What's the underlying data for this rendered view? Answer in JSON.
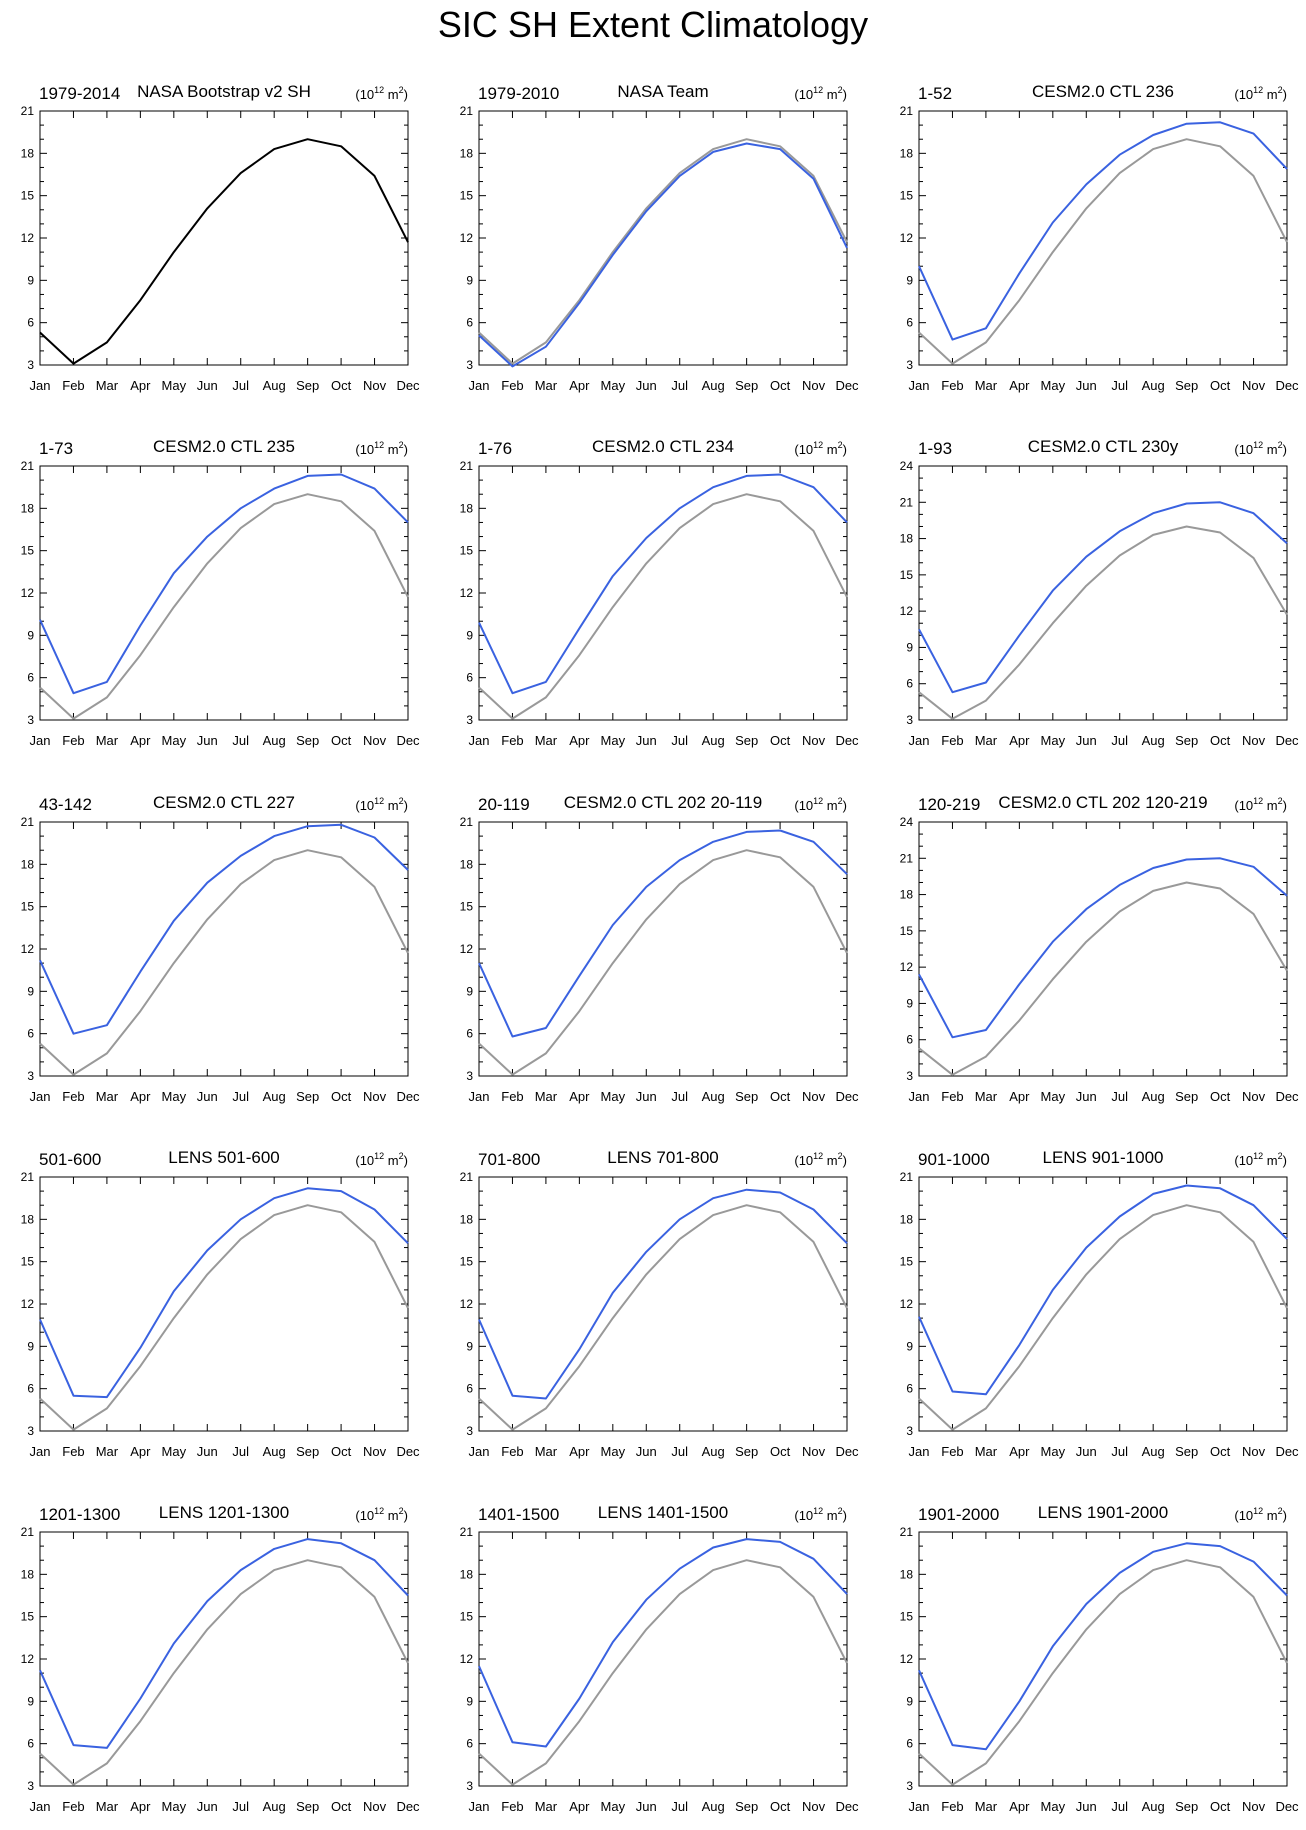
{
  "title": "SIC SH Extent Climatology",
  "units_base": "(10",
  "units_exp": "12",
  "units_unit": " m",
  "units_exp2": "2",
  "units_close": ")",
  "colors": {
    "observed": "#000000",
    "reference": "#999999",
    "model": "#3a62e0"
  },
  "chart_data": [
    {
      "type": "line",
      "left_label": "1979-2014",
      "center_label": "NASA Bootstrap v2 SH",
      "categories": [
        "Jan",
        "Feb",
        "Mar",
        "Apr",
        "May",
        "Jun",
        "Jul",
        "Aug",
        "Sep",
        "Oct",
        "Nov",
        "Dec"
      ],
      "ylim": [
        3,
        21
      ],
      "yticks": [
        3,
        6,
        9,
        12,
        15,
        18,
        21
      ],
      "series": [
        {
          "role": "observed",
          "values": [
            5.3,
            3.1,
            4.6,
            7.6,
            11.0,
            14.1,
            16.6,
            18.3,
            19.0,
            18.5,
            16.4,
            11.7
          ]
        }
      ]
    },
    {
      "type": "line",
      "left_label": "1979-2010",
      "center_label": "NASA Team",
      "categories": [
        "Jan",
        "Feb",
        "Mar",
        "Apr",
        "May",
        "Jun",
        "Jul",
        "Aug",
        "Sep",
        "Oct",
        "Nov",
        "Dec"
      ],
      "ylim": [
        3,
        21
      ],
      "yticks": [
        3,
        6,
        9,
        12,
        15,
        18,
        21
      ],
      "series": [
        {
          "role": "reference",
          "values": [
            5.3,
            3.1,
            4.6,
            7.6,
            11.0,
            14.1,
            16.6,
            18.3,
            19.0,
            18.5,
            16.4,
            11.7
          ]
        },
        {
          "role": "model",
          "values": [
            5.1,
            2.9,
            4.3,
            7.4,
            10.8,
            13.9,
            16.4,
            18.1,
            18.7,
            18.3,
            16.2,
            11.3
          ]
        }
      ]
    },
    {
      "type": "line",
      "left_label": "1-52",
      "center_label": "CESM2.0 CTL 236",
      "categories": [
        "Jan",
        "Feb",
        "Mar",
        "Apr",
        "May",
        "Jun",
        "Jul",
        "Aug",
        "Sep",
        "Oct",
        "Nov",
        "Dec"
      ],
      "ylim": [
        3,
        21
      ],
      "yticks": [
        3,
        6,
        9,
        12,
        15,
        18,
        21
      ],
      "series": [
        {
          "role": "reference",
          "values": [
            5.3,
            3.1,
            4.6,
            7.6,
            11.0,
            14.1,
            16.6,
            18.3,
            19.0,
            18.5,
            16.4,
            11.7
          ]
        },
        {
          "role": "model",
          "values": [
            10.0,
            4.8,
            5.6,
            9.5,
            13.1,
            15.8,
            17.9,
            19.3,
            20.1,
            20.2,
            19.4,
            16.9
          ]
        }
      ]
    },
    {
      "type": "line",
      "left_label": "1-73",
      "center_label": "CESM2.0 CTL 235",
      "categories": [
        "Jan",
        "Feb",
        "Mar",
        "Apr",
        "May",
        "Jun",
        "Jul",
        "Aug",
        "Sep",
        "Oct",
        "Nov",
        "Dec"
      ],
      "ylim": [
        3,
        21
      ],
      "yticks": [
        3,
        6,
        9,
        12,
        15,
        18,
        21
      ],
      "series": [
        {
          "role": "reference",
          "values": [
            5.3,
            3.1,
            4.6,
            7.6,
            11.0,
            14.1,
            16.6,
            18.3,
            19.0,
            18.5,
            16.4,
            11.7
          ]
        },
        {
          "role": "model",
          "values": [
            10.1,
            4.9,
            5.7,
            9.7,
            13.4,
            16.0,
            18.0,
            19.4,
            20.3,
            20.4,
            19.4,
            17.0
          ]
        }
      ]
    },
    {
      "type": "line",
      "left_label": "1-76",
      "center_label": "CESM2.0 CTL 234",
      "categories": [
        "Jan",
        "Feb",
        "Mar",
        "Apr",
        "May",
        "Jun",
        "Jul",
        "Aug",
        "Sep",
        "Oct",
        "Nov",
        "Dec"
      ],
      "ylim": [
        3,
        21
      ],
      "yticks": [
        3,
        6,
        9,
        12,
        15,
        18,
        21
      ],
      "series": [
        {
          "role": "reference",
          "values": [
            5.3,
            3.1,
            4.6,
            7.6,
            11.0,
            14.1,
            16.6,
            18.3,
            19.0,
            18.5,
            16.4,
            11.7
          ]
        },
        {
          "role": "model",
          "values": [
            9.9,
            4.9,
            5.7,
            9.5,
            13.2,
            15.9,
            18.0,
            19.5,
            20.3,
            20.4,
            19.5,
            17.0
          ]
        }
      ]
    },
    {
      "type": "line",
      "left_label": "1-93",
      "center_label": "CESM2.0 CTL 230y",
      "categories": [
        "Jan",
        "Feb",
        "Mar",
        "Apr",
        "May",
        "Jun",
        "Jul",
        "Aug",
        "Sep",
        "Oct",
        "Nov",
        "Dec"
      ],
      "ylim": [
        3,
        24
      ],
      "yticks": [
        3,
        6,
        9,
        12,
        15,
        18,
        21,
        24
      ],
      "series": [
        {
          "role": "reference",
          "values": [
            5.3,
            3.1,
            4.6,
            7.6,
            11.0,
            14.1,
            16.6,
            18.3,
            19.0,
            18.5,
            16.4,
            11.7
          ]
        },
        {
          "role": "model",
          "values": [
            10.5,
            5.3,
            6.1,
            10.0,
            13.7,
            16.5,
            18.6,
            20.1,
            20.9,
            21.0,
            20.1,
            17.6
          ]
        }
      ]
    },
    {
      "type": "line",
      "left_label": "43-142",
      "center_label": "CESM2.0 CTL 227",
      "categories": [
        "Jan",
        "Feb",
        "Mar",
        "Apr",
        "May",
        "Jun",
        "Jul",
        "Aug",
        "Sep",
        "Oct",
        "Nov",
        "Dec"
      ],
      "ylim": [
        3,
        21
      ],
      "yticks": [
        3,
        6,
        9,
        12,
        15,
        18,
        21
      ],
      "series": [
        {
          "role": "reference",
          "values": [
            5.3,
            3.1,
            4.6,
            7.6,
            11.0,
            14.1,
            16.6,
            18.3,
            19.0,
            18.5,
            16.4,
            11.7
          ]
        },
        {
          "role": "model",
          "values": [
            11.2,
            6.0,
            6.6,
            10.4,
            14.0,
            16.7,
            18.6,
            20.0,
            20.7,
            20.8,
            19.9,
            17.6
          ]
        }
      ]
    },
    {
      "type": "line",
      "left_label": "20-119",
      "center_label": "CESM2.0 CTL 202 20-119",
      "categories": [
        "Jan",
        "Feb",
        "Mar",
        "Apr",
        "May",
        "Jun",
        "Jul",
        "Aug",
        "Sep",
        "Oct",
        "Nov",
        "Dec"
      ],
      "ylim": [
        3,
        21
      ],
      "yticks": [
        3,
        6,
        9,
        12,
        15,
        18,
        21
      ],
      "series": [
        {
          "role": "reference",
          "values": [
            5.3,
            3.1,
            4.6,
            7.6,
            11.0,
            14.1,
            16.6,
            18.3,
            19.0,
            18.5,
            16.4,
            11.7
          ]
        },
        {
          "role": "model",
          "values": [
            11.0,
            5.8,
            6.4,
            10.1,
            13.7,
            16.4,
            18.3,
            19.6,
            20.3,
            20.4,
            19.6,
            17.3
          ]
        }
      ]
    },
    {
      "type": "line",
      "left_label": "120-219",
      "center_label": "CESM2.0 CTL 202 120-219",
      "categories": [
        "Jan",
        "Feb",
        "Mar",
        "Apr",
        "May",
        "Jun",
        "Jul",
        "Aug",
        "Sep",
        "Oct",
        "Nov",
        "Dec"
      ],
      "ylim": [
        3,
        24
      ],
      "yticks": [
        3,
        6,
        9,
        12,
        15,
        18,
        21,
        24
      ],
      "series": [
        {
          "role": "reference",
          "values": [
            5.3,
            3.1,
            4.6,
            7.6,
            11.0,
            14.1,
            16.6,
            18.3,
            19.0,
            18.5,
            16.4,
            11.7
          ]
        },
        {
          "role": "model",
          "values": [
            11.4,
            6.2,
            6.8,
            10.6,
            14.1,
            16.8,
            18.8,
            20.2,
            20.9,
            21.0,
            20.3,
            17.9
          ]
        }
      ]
    },
    {
      "type": "line",
      "left_label": "501-600",
      "center_label": "LENS 501-600",
      "categories": [
        "Jan",
        "Feb",
        "Mar",
        "Apr",
        "May",
        "Jun",
        "Jul",
        "Aug",
        "Sep",
        "Oct",
        "Nov",
        "Dec"
      ],
      "ylim": [
        3,
        21
      ],
      "yticks": [
        3,
        6,
        9,
        12,
        15,
        18,
        21
      ],
      "series": [
        {
          "role": "reference",
          "values": [
            5.3,
            3.1,
            4.6,
            7.6,
            11.0,
            14.1,
            16.6,
            18.3,
            19.0,
            18.5,
            16.4,
            11.7
          ]
        },
        {
          "role": "model",
          "values": [
            10.9,
            5.5,
            5.4,
            8.9,
            12.9,
            15.8,
            18.0,
            19.5,
            20.2,
            20.0,
            18.7,
            16.3
          ]
        }
      ]
    },
    {
      "type": "line",
      "left_label": "701-800",
      "center_label": "LENS 701-800",
      "categories": [
        "Jan",
        "Feb",
        "Mar",
        "Apr",
        "May",
        "Jun",
        "Jul",
        "Aug",
        "Sep",
        "Oct",
        "Nov",
        "Dec"
      ],
      "ylim": [
        3,
        21
      ],
      "yticks": [
        3,
        6,
        9,
        12,
        15,
        18,
        21
      ],
      "series": [
        {
          "role": "reference",
          "values": [
            5.3,
            3.1,
            4.6,
            7.6,
            11.0,
            14.1,
            16.6,
            18.3,
            19.0,
            18.5,
            16.4,
            11.7
          ]
        },
        {
          "role": "model",
          "values": [
            10.9,
            5.5,
            5.3,
            8.8,
            12.8,
            15.7,
            18.0,
            19.5,
            20.1,
            19.9,
            18.7,
            16.3
          ]
        }
      ]
    },
    {
      "type": "line",
      "left_label": "901-1000",
      "center_label": "LENS 901-1000",
      "categories": [
        "Jan",
        "Feb",
        "Mar",
        "Apr",
        "May",
        "Jun",
        "Jul",
        "Aug",
        "Sep",
        "Oct",
        "Nov",
        "Dec"
      ],
      "ylim": [
        3,
        21
      ],
      "yticks": [
        3,
        6,
        9,
        12,
        15,
        18,
        21
      ],
      "series": [
        {
          "role": "reference",
          "values": [
            5.3,
            3.1,
            4.6,
            7.6,
            11.0,
            14.1,
            16.6,
            18.3,
            19.0,
            18.5,
            16.4,
            11.7
          ]
        },
        {
          "role": "model",
          "values": [
            11.1,
            5.8,
            5.6,
            9.1,
            13.0,
            16.0,
            18.2,
            19.8,
            20.4,
            20.2,
            19.0,
            16.6
          ]
        }
      ]
    },
    {
      "type": "line",
      "left_label": "1201-1300",
      "center_label": "LENS 1201-1300",
      "categories": [
        "Jan",
        "Feb",
        "Mar",
        "Apr",
        "May",
        "Jun",
        "Jul",
        "Aug",
        "Sep",
        "Oct",
        "Nov",
        "Dec"
      ],
      "ylim": [
        3,
        21
      ],
      "yticks": [
        3,
        6,
        9,
        12,
        15,
        18,
        21
      ],
      "series": [
        {
          "role": "reference",
          "values": [
            5.3,
            3.1,
            4.6,
            7.6,
            11.0,
            14.1,
            16.6,
            18.3,
            19.0,
            18.5,
            16.4,
            11.7
          ]
        },
        {
          "role": "model",
          "values": [
            11.2,
            5.9,
            5.7,
            9.2,
            13.1,
            16.1,
            18.3,
            19.8,
            20.5,
            20.2,
            19.0,
            16.5
          ]
        }
      ]
    },
    {
      "type": "line",
      "left_label": "1401-1500",
      "center_label": "LENS 1401-1500",
      "categories": [
        "Jan",
        "Feb",
        "Mar",
        "Apr",
        "May",
        "Jun",
        "Jul",
        "Aug",
        "Sep",
        "Oct",
        "Nov",
        "Dec"
      ],
      "ylim": [
        3,
        21
      ],
      "yticks": [
        3,
        6,
        9,
        12,
        15,
        18,
        21
      ],
      "series": [
        {
          "role": "reference",
          "values": [
            5.3,
            3.1,
            4.6,
            7.6,
            11.0,
            14.1,
            16.6,
            18.3,
            19.0,
            18.5,
            16.4,
            11.7
          ]
        },
        {
          "role": "model",
          "values": [
            11.5,
            6.1,
            5.8,
            9.2,
            13.2,
            16.2,
            18.4,
            19.9,
            20.5,
            20.3,
            19.1,
            16.6
          ]
        }
      ]
    },
    {
      "type": "line",
      "left_label": "1901-2000",
      "center_label": "LENS 1901-2000",
      "categories": [
        "Jan",
        "Feb",
        "Mar",
        "Apr",
        "May",
        "Jun",
        "Jul",
        "Aug",
        "Sep",
        "Oct",
        "Nov",
        "Dec"
      ],
      "ylim": [
        3,
        21
      ],
      "yticks": [
        3,
        6,
        9,
        12,
        15,
        18,
        21
      ],
      "series": [
        {
          "role": "reference",
          "values": [
            5.3,
            3.1,
            4.6,
            7.6,
            11.0,
            14.1,
            16.6,
            18.3,
            19.0,
            18.5,
            16.4,
            11.7
          ]
        },
        {
          "role": "model",
          "values": [
            11.2,
            5.9,
            5.6,
            9.0,
            12.9,
            15.9,
            18.1,
            19.6,
            20.2,
            20.0,
            18.9,
            16.5
          ]
        }
      ]
    }
  ]
}
